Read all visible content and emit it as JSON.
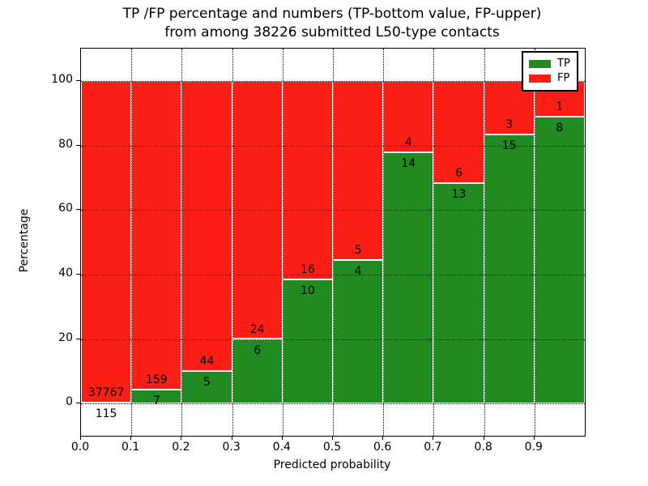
{
  "title": {
    "line1": "TP /FP percentage and numbers (TP-bottom value, FP-upper)",
    "line2": "from among 38226 submitted L50-type contacts"
  },
  "axes": {
    "xlabel": "Predicted probability",
    "ylabel": "Percentage"
  },
  "legend": {
    "position": "upper right",
    "entries": [
      {
        "label": "TP",
        "color": "#218a21"
      },
      {
        "label": "FP",
        "color": "#fb1e15"
      }
    ]
  },
  "colors": {
    "tp_green": "#218a21",
    "fp_red": "#fb1e15",
    "grid": "#000000",
    "bar_edge": "#ffffff"
  },
  "chart_data": {
    "type": "bar",
    "stacked": true,
    "normalized_to": 100,
    "title": "TP /FP percentage and numbers (TP-bottom value, FP-upper) from among 38226 submitted L50-type contacts",
    "xlabel": "Predicted probability",
    "ylabel": "Percentage",
    "total_contacts": 38226,
    "xlim": [
      0.0,
      1.0
    ],
    "ylim": [
      -10,
      110
    ],
    "grid": true,
    "bin_width": 0.1,
    "ytick_values": [
      0,
      20,
      40,
      60,
      80,
      100
    ],
    "ytick_labels": [
      "0",
      "20",
      "40",
      "60",
      "80",
      "100"
    ],
    "xtick_values": [
      0.0,
      0.1,
      0.2,
      0.3,
      0.4,
      0.5,
      0.6,
      0.7,
      0.8,
      0.9
    ],
    "xtick_labels": [
      "0.0",
      "0.1",
      "0.2",
      "0.3",
      "0.4",
      "0.5",
      "0.6",
      "0.7",
      "0.8",
      "0.9"
    ],
    "xgrid_values": [
      0.1,
      0.2,
      0.3,
      0.4,
      0.5,
      0.6,
      0.7,
      0.8,
      0.9
    ],
    "categories": [
      "0.0-0.1",
      "0.1-0.2",
      "0.2-0.3",
      "0.3-0.4",
      "0.4-0.5",
      "0.5-0.6",
      "0.6-0.7",
      "0.7-0.8",
      "0.8-0.9",
      "0.9-1.0"
    ],
    "series": [
      {
        "name": "TP",
        "color": "#218a21",
        "counts": [
          115,
          7,
          5,
          6,
          10,
          4,
          14,
          13,
          15,
          8
        ],
        "pct": [
          0.3,
          4.22,
          10.2,
          20.0,
          38.46,
          44.44,
          77.78,
          68.42,
          83.33,
          88.89
        ]
      },
      {
        "name": "FP",
        "color": "#fb1e15",
        "counts": [
          37767,
          159,
          44,
          24,
          16,
          5,
          4,
          6,
          3,
          1
        ],
        "pct": [
          99.7,
          95.78,
          89.8,
          80.0,
          61.54,
          55.56,
          22.22,
          31.58,
          16.67,
          11.11
        ]
      }
    ]
  }
}
